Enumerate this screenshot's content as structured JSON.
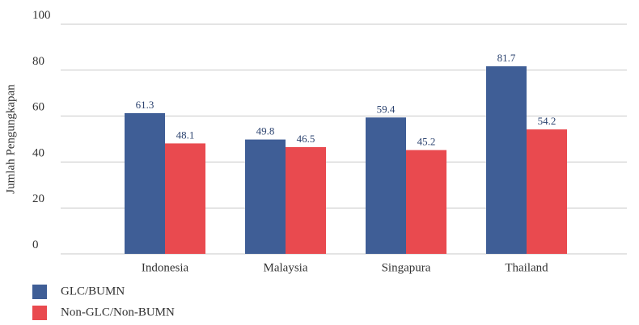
{
  "chart_data": {
    "type": "bar",
    "y_label": "Jumlah Pengungkapan",
    "categories": [
      "Indonesia",
      "Malaysia",
      "Singapura",
      "Thailand"
    ],
    "series": [
      {
        "name": "GLC/BUMN",
        "color": "#3f5e96",
        "values": [
          61.3,
          49.8,
          59.4,
          81.7
        ]
      },
      {
        "name": "Non-GLC/Non-BUMN",
        "color": "#e94a4f",
        "values": [
          48.1,
          46.5,
          45.2,
          54.2
        ]
      }
    ],
    "ylim": [
      0,
      100
    ],
    "yticks": [
      0,
      20,
      40,
      60,
      80,
      100
    ],
    "grid": true
  }
}
